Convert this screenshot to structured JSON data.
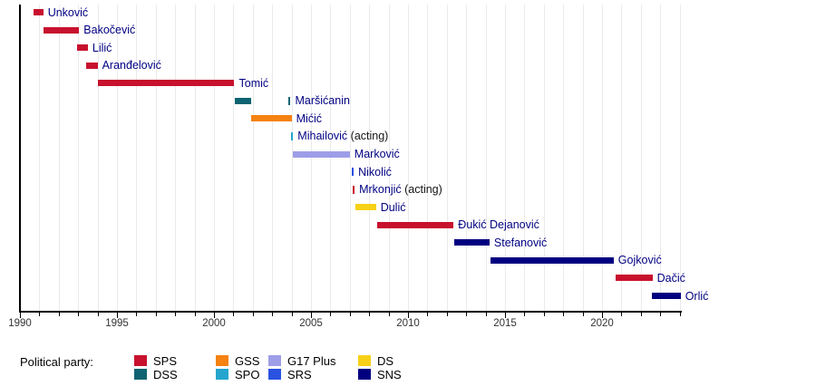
{
  "chart_data": {
    "type": "timeline",
    "title": "",
    "x_axis": {
      "min": 1990,
      "max": 2024,
      "major_tick_years": [
        1990,
        1995,
        2000,
        2005,
        2010,
        2015,
        2020
      ],
      "minor_tick_interval": 1,
      "grid": true
    },
    "legend": {
      "title": "Political party:",
      "items": [
        {
          "party": "SPS",
          "color": "#C8112E",
          "row": 0,
          "col": 0
        },
        {
          "party": "DSS",
          "color": "#0E6472",
          "row": 1,
          "col": 0
        },
        {
          "party": "GSS",
          "color": "#F58211",
          "row": 0,
          "col": 1
        },
        {
          "party": "SPO",
          "color": "#25A5CE",
          "row": 1,
          "col": 1
        },
        {
          "party": "G17 Plus",
          "color": "#9E9EE8",
          "row": 0,
          "col": 2
        },
        {
          "party": "SRS",
          "color": "#2952E0",
          "row": 1,
          "col": 2
        },
        {
          "party": "DS",
          "color": "#F7D117",
          "row": 0,
          "col": 3
        },
        {
          "party": "SNS",
          "color": "#000080",
          "row": 1,
          "col": 3
        }
      ]
    },
    "rows": [
      {
        "label": "Unković",
        "party": "SPS",
        "segments": [
          {
            "start": 1990.7,
            "end": 1991.2
          }
        ]
      },
      {
        "label": "Bakočević",
        "party": "SPS",
        "segments": [
          {
            "start": 1991.2,
            "end": 1993.05
          }
        ]
      },
      {
        "label": "Lilić",
        "party": "SPS",
        "segments": [
          {
            "start": 1992.95,
            "end": 1993.5
          }
        ]
      },
      {
        "label": "Aranđelović",
        "party": "SPS",
        "segments": [
          {
            "start": 1993.4,
            "end": 1994.0
          }
        ]
      },
      {
        "label": "Tomić",
        "party": "SPS",
        "segments": [
          {
            "start": 1994.0,
            "end": 2001.05
          }
        ]
      },
      {
        "label": "Maršićanin",
        "party": "DSS",
        "segments": [
          {
            "start": 2001.05,
            "end": 2001.9
          },
          {
            "start": 2003.85,
            "end": 2003.95,
            "tick": true
          }
        ]
      },
      {
        "label": "Mićić",
        "party": "GSS",
        "segments": [
          {
            "start": 2001.9,
            "end": 2004.0
          }
        ]
      },
      {
        "label": "Mihailović",
        "suffix": "(acting)",
        "party": "SPO",
        "segments": [
          {
            "start": 2003.98,
            "end": 2004.08,
            "tick": true
          }
        ]
      },
      {
        "label": "Marković",
        "party": "G17 Plus",
        "segments": [
          {
            "start": 2004.05,
            "end": 2007.0
          }
        ]
      },
      {
        "label": "Nikolić",
        "party": "SRS",
        "segments": [
          {
            "start": 2007.1,
            "end": 2007.2,
            "tick": true
          }
        ]
      },
      {
        "label": "Mrkonjić",
        "suffix": "(acting)",
        "party": "SPS",
        "segments": [
          {
            "start": 2007.15,
            "end": 2007.25,
            "tick": true
          }
        ]
      },
      {
        "label": "Dulić",
        "party": "DS",
        "segments": [
          {
            "start": 2007.3,
            "end": 2008.35
          }
        ]
      },
      {
        "label": "Đukić Dejanović",
        "party": "SPS",
        "segments": [
          {
            "start": 2008.4,
            "end": 2012.35
          }
        ]
      },
      {
        "label": "Stefanović",
        "party": "SNS",
        "segments": [
          {
            "start": 2012.4,
            "end": 2014.2
          }
        ]
      },
      {
        "label": "Gojković",
        "party": "SNS",
        "segments": [
          {
            "start": 2014.25,
            "end": 2020.6
          }
        ]
      },
      {
        "label": "Dačić",
        "party": "SPS",
        "segments": [
          {
            "start": 2020.7,
            "end": 2022.6
          }
        ]
      },
      {
        "label": "Orlić",
        "party": "SNS",
        "segments": [
          {
            "start": 2022.55,
            "end": 2024.05
          }
        ]
      }
    ]
  }
}
